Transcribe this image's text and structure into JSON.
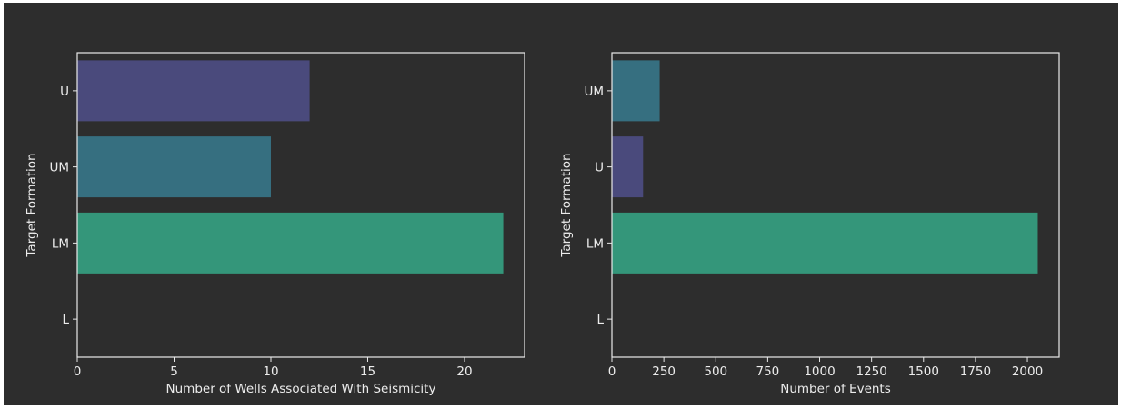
{
  "colors": {
    "background": "#2d2d2d",
    "axis": "#e8e8e8",
    "text": "#ececec",
    "U": "#4a4a7c",
    "UM": "#366f80",
    "LM": "#34967a"
  },
  "chart_data": [
    {
      "type": "bar",
      "orientation": "horizontal",
      "categories": [
        "U",
        "UM",
        "LM",
        "L"
      ],
      "values": [
        12,
        10,
        22,
        0
      ],
      "xlabel": "Number of Wells Associated With Seismicity",
      "ylabel": "Target Formation",
      "xlim": [
        0,
        23.1
      ],
      "xticks": [
        0,
        5,
        10,
        15,
        20
      ],
      "xtick_labels": [
        "0",
        "5",
        "10",
        "15",
        "20"
      ],
      "grid": false,
      "legend": "none"
    },
    {
      "type": "bar",
      "orientation": "horizontal",
      "categories": [
        "UM",
        "U",
        "LM",
        "L"
      ],
      "values": [
        230,
        150,
        2050,
        0
      ],
      "xlabel": "Number of Events",
      "ylabel": "Target Formation",
      "xlim": [
        0,
        2153
      ],
      "xticks": [
        0,
        250,
        500,
        750,
        1000,
        1250,
        1500,
        1750,
        2000
      ],
      "xtick_labels": [
        "0",
        "250",
        "500",
        "750",
        "1000",
        "1250",
        "1500",
        "1750",
        "2000"
      ],
      "grid": false,
      "legend": "none"
    }
  ]
}
